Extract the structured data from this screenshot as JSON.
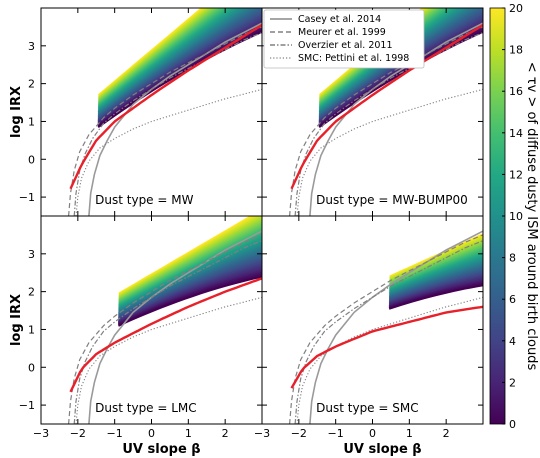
{
  "chart_data": {
    "type": "line",
    "xlabel": "UV slope β",
    "ylabel": "log IRX",
    "xlim": [
      -3,
      3
    ],
    "ylim": [
      -1.5,
      4
    ],
    "x_ticks": [
      "−3",
      "−2",
      "−1",
      "0",
      "1",
      "2"
    ],
    "x_ticks_right": [
      "−3",
      "−2",
      "−1",
      "0",
      "1",
      "2"
    ],
    "y_ticks": [
      "−1",
      "0",
      "1",
      "2",
      "3"
    ],
    "legend": {
      "placement": "top",
      "entries": [
        {
          "name": "Casey et al. 2014",
          "style": "solid",
          "color": "#999999"
        },
        {
          "name": "Meurer et al. 1999",
          "style": "dashed",
          "color": "#777777"
        },
        {
          "name": "Overzier et al. 2011",
          "style": "dashdot",
          "color": "#777777"
        },
        {
          "name": "SMC: Pettini et al. 1998",
          "style": "dotted",
          "color": "#777777"
        }
      ]
    },
    "colorbar": {
      "label": "< τv > of diffuse dusty ISM around birth clouds",
      "min": 0,
      "max": 20,
      "ticks": [
        "0",
        "2",
        "4",
        "6",
        "8",
        "10",
        "12",
        "14",
        "16",
        "18",
        "20"
      ],
      "colormap": "viridis"
    },
    "panels": [
      {
        "label": "Dust type = MW",
        "model": {
          "beta_start": -1.45,
          "beta_end": 2.5,
          "irx_start": 0.85,
          "slope": 0.7,
          "tau_curve": [
            [
              -2.2,
              -0.78
            ],
            [
              -1.9,
              -0.15
            ],
            [
              -1.5,
              0.5
            ],
            [
              -1.0,
              1.0
            ],
            [
              -0.5,
              1.35
            ],
            [
              0,
              1.7
            ],
            [
              1,
              2.35
            ],
            [
              2,
              2.95
            ],
            [
              3,
              3.55
            ]
          ]
        }
      },
      {
        "label": "Dust type = MW-BUMP00",
        "model": {
          "beta_start": -1.45,
          "beta_end": 2.5,
          "irx_start": 0.85,
          "slope": 0.7,
          "tau_curve": [
            [
              -2.2,
              -0.78
            ],
            [
              -1.9,
              -0.15
            ],
            [
              -1.5,
              0.5
            ],
            [
              -1.0,
              1.0
            ],
            [
              -0.5,
              1.35
            ],
            [
              0,
              1.7
            ],
            [
              1,
              2.35
            ],
            [
              2,
              2.95
            ],
            [
              3,
              3.55
            ]
          ]
        }
      },
      {
        "label": "Dust type = LMC",
        "model": {
          "beta_start": -0.9,
          "beta_end": 3.0,
          "irx_start": 1.1,
          "slope": 0.45,
          "tau_curve": [
            [
              -2.2,
              -0.65
            ],
            [
              -1.9,
              -0.05
            ],
            [
              -1.5,
              0.35
            ],
            [
              -1.0,
              0.65
            ],
            [
              -0.5,
              0.9
            ],
            [
              0,
              1.15
            ],
            [
              1,
              1.6
            ],
            [
              2,
              2.0
            ],
            [
              3,
              2.35
            ]
          ]
        }
      },
      {
        "label": "Dust type = SMC",
        "model": {
          "beta_start": 0.45,
          "beta_end": 3.0,
          "irx_start": 1.55,
          "slope": 0.32,
          "tau_curve": [
            [
              -2.2,
              -0.55
            ],
            [
              -1.9,
              -0.05
            ],
            [
              -1.5,
              0.3
            ],
            [
              -1.0,
              0.55
            ],
            [
              -0.5,
              0.75
            ],
            [
              0,
              0.95
            ],
            [
              1,
              1.2
            ],
            [
              2,
              1.45
            ],
            [
              3,
              1.6
            ]
          ]
        }
      }
    ],
    "reference_curves": {
      "casey_2014": [
        [
          -1.7,
          -1.5
        ],
        [
          -1.65,
          -0.9
        ],
        [
          -1.55,
          -0.4
        ],
        [
          -1.4,
          0.1
        ],
        [
          -1.2,
          0.5
        ],
        [
          -1,
          0.85
        ],
        [
          -0.5,
          1.45
        ],
        [
          0,
          1.85
        ],
        [
          0.5,
          2.2
        ],
        [
          1,
          2.5
        ],
        [
          1.5,
          2.8
        ],
        [
          2,
          3.1
        ],
        [
          2.5,
          3.35
        ],
        [
          3,
          3.6
        ]
      ],
      "meurer_1999": [
        [
          -2.25,
          -1.5
        ],
        [
          -2.2,
          -0.9
        ],
        [
          -2.1,
          -0.3
        ],
        [
          -1.95,
          0.2
        ],
        [
          -1.7,
          0.65
        ],
        [
          -1.3,
          1.1
        ],
        [
          -1,
          1.35
        ],
        [
          -0.5,
          1.7
        ],
        [
          0,
          2.0
        ],
        [
          0.5,
          2.3
        ],
        [
          1,
          2.55
        ],
        [
          1.5,
          2.8
        ],
        [
          2,
          3.05
        ],
        [
          2.5,
          3.3
        ],
        [
          3,
          3.5
        ]
      ],
      "overzier_2011": [
        [
          -2.1,
          -1.5
        ],
        [
          -2.05,
          -0.9
        ],
        [
          -1.95,
          -0.3
        ],
        [
          -1.8,
          0.15
        ],
        [
          -1.6,
          0.55
        ],
        [
          -1.3,
          0.95
        ],
        [
          -1,
          1.2
        ],
        [
          -0.5,
          1.55
        ],
        [
          0,
          1.85
        ],
        [
          0.5,
          2.15
        ],
        [
          1,
          2.4
        ],
        [
          1.5,
          2.65
        ],
        [
          2,
          2.9
        ],
        [
          2.5,
          3.15
        ],
        [
          3,
          3.35
        ]
      ],
      "pettini_1998": [
        [
          -2.05,
          -1.5
        ],
        [
          -2.0,
          -1.0
        ],
        [
          -1.9,
          -0.5
        ],
        [
          -1.7,
          -0.05
        ],
        [
          -1.4,
          0.3
        ],
        [
          -1,
          0.55
        ],
        [
          -0.5,
          0.8
        ],
        [
          0,
          1.0
        ],
        [
          0.5,
          1.15
        ],
        [
          1,
          1.3
        ],
        [
          1.5,
          1.45
        ],
        [
          2,
          1.6
        ],
        [
          2.5,
          1.72
        ],
        [
          3,
          1.85
        ]
      ]
    }
  }
}
